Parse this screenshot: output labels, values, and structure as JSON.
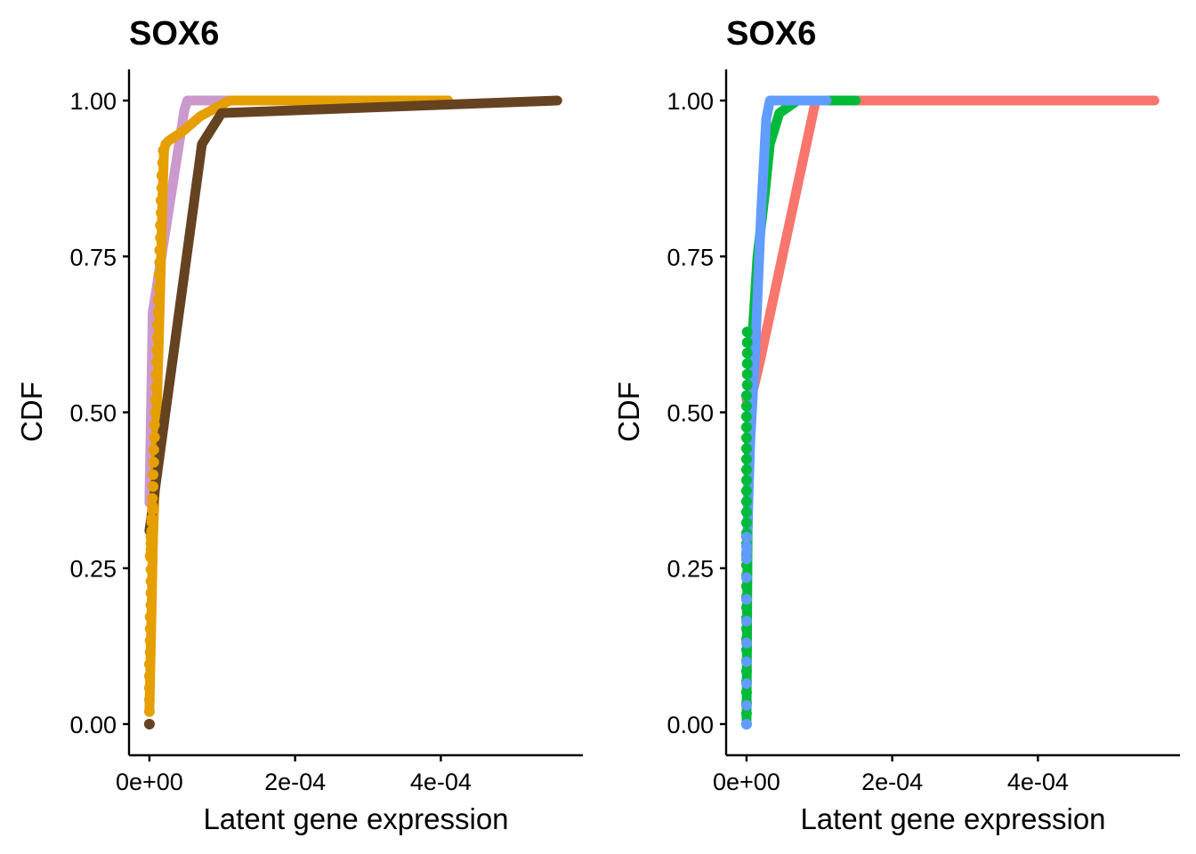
{
  "chart_data": [
    {
      "type": "line",
      "title": "SOX6",
      "xlabel": "Latent gene expression",
      "ylabel": "CDF",
      "xlim": [
        -2.8e-05,
        0.000595
      ],
      "ylim": [
        -0.05,
        1.05
      ],
      "x_ticks": [
        0,
        0.0002,
        0.0004
      ],
      "x_tick_labels": [
        "0e+00",
        "2e-04",
        "4e-04"
      ],
      "y_ticks": [
        0,
        0.25,
        0.5,
        0.75,
        1.0
      ],
      "y_tick_labels": [
        "0.00",
        "0.25",
        "0.50",
        "0.75",
        "1.00"
      ],
      "grid": false,
      "legend": "none",
      "series": [
        {
          "name": "series-lilac",
          "color": "#CC99CC",
          "x": [
            0,
            4.5e-06,
            4.8e-05,
            5.2e-05,
            0.00041
          ],
          "y": [
            0.355,
            0.66,
            0.985,
            1.0,
            1.0
          ]
        },
        {
          "name": "series-orange",
          "color": "#E69F00",
          "x": [
            0,
            2.5e-06,
            5e-06,
            7.5e-06,
            1e-05,
            1.3e-05,
            1.6e-05,
            1.8e-05,
            2e-05,
            2.2e-05,
            2.6e-05,
            4.5e-05,
            7e-05,
            0.00011,
            0.00025,
            0.00041
          ],
          "y": [
            0.02,
            0.16,
            0.3,
            0.38,
            0.5,
            0.62,
            0.75,
            0.85,
            0.92,
            0.93,
            0.935,
            0.95,
            0.975,
            1.0,
            1.0,
            1.0
          ],
          "points_x": [
            0,
            0,
            0,
            0,
            0,
            0,
            0,
            0,
            0,
            0,
            0,
            0,
            0,
            0,
            0,
            0,
            0,
            0,
            0,
            0,
            0,
            0,
            0,
            0,
            0,
            0,
            0,
            0,
            0,
            0,
            0,
            0,
            0,
            0,
            0,
            0,
            0,
            0,
            0,
            0,
            0,
            0,
            0,
            0,
            0,
            0,
            0,
            0,
            0,
            0,
            0,
            0,
            0,
            0
          ],
          "points_y": [
            0.02,
            0.039,
            0.058,
            0.077,
            0.096,
            0.115,
            0.134,
            0.153,
            0.172,
            0.191,
            0.21,
            0.229,
            0.248,
            0.267,
            0.286,
            0.305,
            0.324,
            0.343,
            0.362,
            0.381,
            0.4,
            0.42,
            0.44,
            0.46,
            0.48,
            0.5,
            0.52,
            0.54,
            0.56,
            0.58,
            0.6,
            0.62,
            0.64,
            0.66,
            0.68,
            0.7,
            0.72,
            0.74,
            0.76,
            0.78,
            0.8,
            0.82,
            0.84,
            0.86,
            0.88,
            0.9,
            0.92,
            0.35,
            0.33,
            0.31,
            0.3,
            0.29,
            0.28,
            0.27
          ],
          "points_x_offset": [
            0,
            0,
            0,
            0,
            0,
            1e-06,
            1e-06,
            1e-06,
            1e-06,
            2e-06,
            2e-06,
            2e-06,
            2e-06,
            2e-06,
            3e-06,
            3e-06,
            3e-06,
            4e-06,
            4e-06,
            5e-06,
            5e-06,
            6e-06,
            6e-06,
            7e-06,
            7e-06,
            8e-06,
            8e-06,
            9e-06,
            9e-06,
            1e-05,
            1e-05,
            1.1e-05,
            1.1e-05,
            1.2e-05,
            1.2e-05,
            1.3e-05,
            1.3e-05,
            1.4e-05,
            1.4e-05,
            1.5e-05,
            1.5e-05,
            1.6e-05,
            1.6e-05,
            1.7e-05,
            1.7e-05,
            1.8e-05,
            1.9e-05,
            4e-06,
            3e-06,
            3e-06,
            2e-06,
            2e-06,
            2e-06,
            1e-06
          ]
        },
        {
          "name": "series-brown",
          "color": "#654321",
          "x": [
            0,
            7.2e-05,
            9.9e-05,
            0.00056
          ],
          "y": [
            0.31,
            0.93,
            0.98,
            1.0
          ],
          "points_x": [
            0
          ],
          "points_y": [
            0
          ]
        }
      ]
    },
    {
      "type": "line",
      "title": "SOX6",
      "xlabel": "Latent gene expression",
      "ylabel": "CDF",
      "xlim": [
        -2.8e-05,
        0.000595
      ],
      "ylim": [
        -0.05,
        1.05
      ],
      "x_ticks": [
        0,
        0.0002,
        0.0004
      ],
      "x_tick_labels": [
        "0e+00",
        "2e-04",
        "4e-04"
      ],
      "y_ticks": [
        0,
        0.25,
        0.5,
        0.75,
        1.0
      ],
      "y_tick_labels": [
        "0.00",
        "0.25",
        "0.50",
        "0.75",
        "1.00"
      ],
      "grid": false,
      "legend": "none",
      "series": [
        {
          "name": "series-red",
          "color": "#F8766D",
          "x": [
            0,
            1e-05,
            1.8e-05,
            9.5e-05,
            0.00015,
            0.00056
          ],
          "y": [
            0.52,
            0.54,
            0.58,
            1.0,
            1.0,
            1.0
          ]
        },
        {
          "name": "series-green",
          "color": "#00BA38",
          "x": [
            0,
            1.5e-06,
            4e-06,
            8e-06,
            1.5e-05,
            2.5e-05,
            3.2e-05,
            4.5e-05,
            7e-05,
            0.00015
          ],
          "y": [
            0.0,
            0.3,
            0.5,
            0.62,
            0.75,
            0.85,
            0.93,
            0.98,
            1.0,
            1.0
          ],
          "points_x": [
            0,
            0,
            0,
            0,
            0,
            0,
            0,
            0,
            0,
            0,
            0,
            0,
            0,
            0,
            0,
            0,
            0,
            0,
            0,
            0,
            0,
            0,
            0,
            0,
            0,
            0,
            0,
            0,
            0,
            0,
            0,
            0,
            1e-06,
            1e-06,
            1e-06,
            1e-06,
            1e-06,
            1e-06
          ],
          "points_y": [
            0,
            0.017,
            0.034,
            0.051,
            0.068,
            0.085,
            0.102,
            0.119,
            0.136,
            0.153,
            0.17,
            0.187,
            0.204,
            0.221,
            0.238,
            0.255,
            0.272,
            0.289,
            0.306,
            0.323,
            0.34,
            0.357,
            0.374,
            0.391,
            0.408,
            0.425,
            0.442,
            0.459,
            0.476,
            0.493,
            0.51,
            0.527,
            0.544,
            0.561,
            0.578,
            0.595,
            0.612,
            0.629
          ]
        },
        {
          "name": "series-blue",
          "color": "#619CFF",
          "x": [
            0,
            1e-06,
            5e-06,
            1.2e-05,
            2e-05,
            2.7e-05,
            3.2e-05,
            4.8e-05,
            0.00011
          ],
          "y": [
            0.27,
            0.3,
            0.45,
            0.6,
            0.82,
            0.97,
            1.0,
            1.0,
            1.0
          ],
          "points_x": [
            0,
            0,
            0,
            0,
            0,
            0,
            0,
            0,
            0,
            0,
            0,
            0
          ],
          "points_y": [
            0,
            0.03,
            0.065,
            0.1,
            0.13,
            0.165,
            0.2,
            0.235,
            0.265,
            0.275,
            0.285,
            0.3
          ]
        }
      ]
    }
  ]
}
